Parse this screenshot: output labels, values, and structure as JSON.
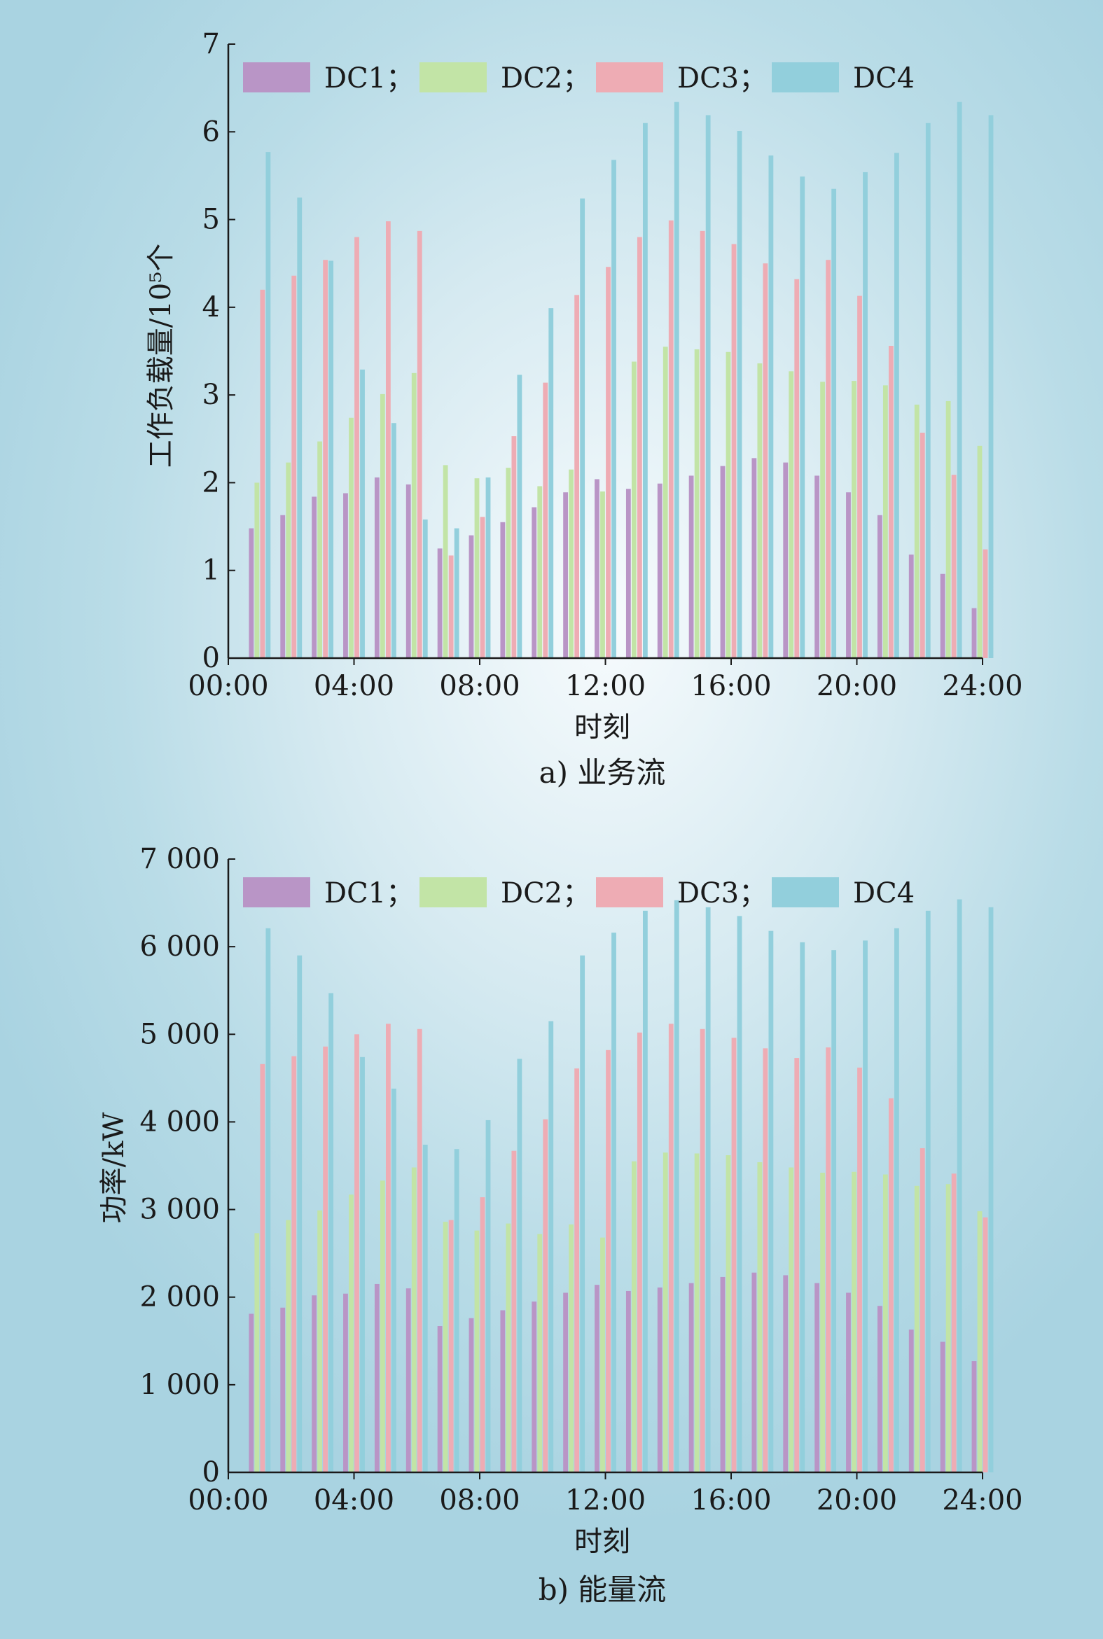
{
  "colors": {
    "DC1": "#b995c6",
    "DC2": "#c2e4a6",
    "DC3": "#eeacb4",
    "DC4": "#92cfdc",
    "axis": "#1a1a1a"
  },
  "chart_data": [
    {
      "type": "bar",
      "caption": "a) 业务流",
      "xlabel": "时刻",
      "ylabel": "工作负载量/10⁵个",
      "xticks": [
        "00:00",
        "04:00",
        "08:00",
        "12:00",
        "16:00",
        "20:00",
        "24:00"
      ],
      "yticks": [
        "0",
        "1",
        "2",
        "3",
        "4",
        "5",
        "6",
        "7"
      ],
      "ylim": [
        0,
        7
      ],
      "legend_labels": [
        "DC1；",
        "DC2；",
        "DC3；",
        "DC4"
      ],
      "legend_position": "top",
      "categories": [
        1,
        2,
        3,
        4,
        5,
        6,
        7,
        8,
        9,
        10,
        11,
        12,
        13,
        14,
        15,
        16,
        17,
        18,
        19,
        20,
        21,
        22,
        23,
        24
      ],
      "series": [
        {
          "name": "DC1",
          "values": [
            1.48,
            1.63,
            1.84,
            1.88,
            2.06,
            1.98,
            1.25,
            1.4,
            1.55,
            1.72,
            1.89,
            2.04,
            1.93,
            1.99,
            2.08,
            2.19,
            2.28,
            2.23,
            2.08,
            1.89,
            1.63,
            1.18,
            0.96,
            0.57
          ]
        },
        {
          "name": "DC2",
          "values": [
            2.0,
            2.23,
            2.47,
            2.74,
            3.01,
            3.25,
            2.2,
            2.05,
            2.17,
            1.96,
            2.15,
            1.9,
            3.38,
            3.55,
            3.52,
            3.49,
            3.36,
            3.27,
            3.15,
            3.16,
            3.11,
            2.89,
            2.93,
            2.42
          ]
        },
        {
          "name": "DC3",
          "values": [
            4.2,
            4.36,
            4.54,
            4.8,
            4.98,
            4.87,
            1.17,
            1.61,
            2.53,
            3.14,
            4.14,
            4.46,
            4.8,
            4.99,
            4.87,
            4.72,
            4.5,
            4.32,
            4.54,
            4.13,
            3.56,
            2.57,
            2.09,
            1.24
          ]
        },
        {
          "name": "DC4",
          "values": [
            5.77,
            5.25,
            4.53,
            3.29,
            2.68,
            1.58,
            1.48,
            2.06,
            3.23,
            3.99,
            5.24,
            5.68,
            6.1,
            6.34,
            6.19,
            6.01,
            5.73,
            5.49,
            5.35,
            5.54,
            5.76,
            6.1,
            6.34,
            6.19
          ]
        }
      ]
    },
    {
      "type": "bar",
      "caption": "b) 能量流",
      "xlabel": "时刻",
      "ylabel": "功率/kW",
      "xticks": [
        "00:00",
        "04:00",
        "08:00",
        "12:00",
        "16:00",
        "20:00",
        "24:00"
      ],
      "yticks": [
        "0",
        "1 000",
        "2 000",
        "3 000",
        "4 000",
        "5 000",
        "6 000",
        "7 000"
      ],
      "ylim": [
        0,
        7000
      ],
      "legend_labels": [
        "DC1；",
        "DC2；",
        "DC3；",
        "DC4"
      ],
      "legend_position": "top",
      "categories": [
        1,
        2,
        3,
        4,
        5,
        6,
        7,
        8,
        9,
        10,
        11,
        12,
        13,
        14,
        15,
        16,
        17,
        18,
        19,
        20,
        21,
        22,
        23,
        24
      ],
      "series": [
        {
          "name": "DC1",
          "values": [
            1810,
            1880,
            2020,
            2040,
            2150,
            2100,
            1670,
            1760,
            1850,
            1950,
            2050,
            2140,
            2070,
            2110,
            2160,
            2230,
            2280,
            2250,
            2160,
            2050,
            1900,
            1630,
            1490,
            1270
          ]
        },
        {
          "name": "DC2",
          "values": [
            2730,
            2880,
            2990,
            3170,
            3330,
            3480,
            2860,
            2760,
            2840,
            2720,
            2830,
            2680,
            3550,
            3650,
            3640,
            3620,
            3540,
            3480,
            3420,
            3430,
            3400,
            3270,
            3290,
            2980
          ]
        },
        {
          "name": "DC3",
          "values": [
            4660,
            4750,
            4860,
            5000,
            5120,
            5060,
            2880,
            3140,
            3670,
            4030,
            4610,
            4820,
            5020,
            5120,
            5060,
            4960,
            4840,
            4730,
            4850,
            4620,
            4270,
            3700,
            3410,
            2910
          ]
        },
        {
          "name": "DC4",
          "values": [
            6210,
            5900,
            5470,
            4740,
            4380,
            3740,
            3690,
            4020,
            4720,
            5150,
            5900,
            6160,
            6410,
            6530,
            6450,
            6350,
            6180,
            6050,
            5960,
            6070,
            6210,
            6410,
            6540,
            6450
          ]
        }
      ]
    }
  ]
}
